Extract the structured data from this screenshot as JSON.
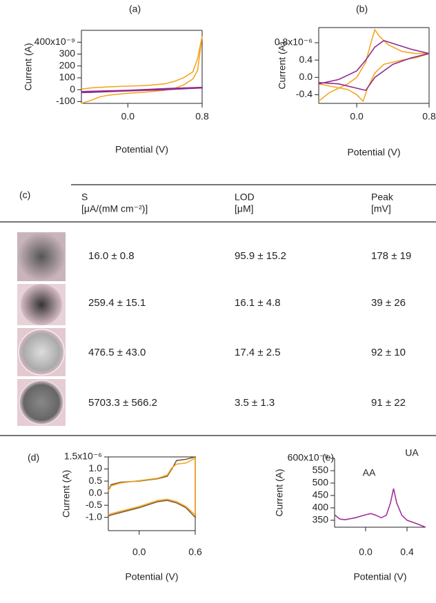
{
  "chart_data": [
    {
      "type": "line",
      "label": "(a)",
      "xlabel": "Potential (V)",
      "ylabel": "Current (A)",
      "xlim": [
        -0.5,
        0.8
      ],
      "ylim": [
        -1.15e-07,
        5e-07
      ],
      "xticks": [
        {
          "value": 0,
          "label": "0.0"
        },
        0.8
      ],
      "yticks": [
        {
          "value": 4e-07,
          "label": "400x10⁻⁹"
        },
        {
          "value": 3e-07,
          "label": "300"
        },
        {
          "value": 2e-07,
          "label": "200"
        },
        {
          "value": 1e-07,
          "label": "100"
        },
        0,
        {
          "value": -1e-07,
          "label": "-100"
        }
      ],
      "series": [
        {
          "color": "#f5a623",
          "x": [
            -0.5,
            -0.4,
            -0.3,
            -0.2,
            0,
            0.2,
            0.4,
            0.5,
            0.6,
            0.7,
            0.75,
            0.8,
            0.75,
            0.7,
            0.6,
            0.5,
            0.4,
            0.2,
            0,
            -0.2,
            -0.4,
            -0.5
          ],
          "values": [
            -1.15e-07,
            -9e-08,
            -6e-08,
            -4.5e-08,
            -3e-08,
            -2e-08,
            -5e-09,
            1e-08,
            4e-08,
            9e-08,
            1.6e-07,
            4.5e-07,
            2.6e-07,
            1.5e-07,
            1e-07,
            7e-08,
            5e-08,
            3.5e-08,
            3e-08,
            2.5e-08,
            1.5e-08,
            5e-09
          ]
        },
        {
          "color": "#8e2a8e",
          "x": [
            -0.5,
            0,
            0.4,
            0.8,
            0.8,
            0.4,
            0,
            -0.5
          ],
          "values": [
            -2.5e-08,
            -1e-08,
            0,
            1.5e-08,
            2e-08,
            1e-08,
            -5e-09,
            -1.5e-08
          ]
        }
      ]
    },
    {
      "type": "line",
      "label": "(b)",
      "xlabel": "Potential (V)",
      "ylabel": "Current (A)",
      "xlim": [
        -0.42,
        0.8
      ],
      "ylim": [
        -6e-07,
        1.15e-06
      ],
      "xticks": [
        {
          "value": 0,
          "label": "0.0"
        },
        0.8
      ],
      "yticks": [
        {
          "value": 8e-07,
          "label": "0.8x10⁻⁶"
        },
        {
          "value": 4e-07,
          "label": "0.4"
        },
        {
          "value": 0,
          "label": "0.0"
        },
        {
          "value": -4e-07,
          "label": "-0.4"
        }
      ],
      "series": [
        {
          "color": "#f5a623",
          "x": [
            -0.42,
            -0.3,
            -0.1,
            0,
            0.1,
            0.15,
            0.2,
            0.25,
            0.35,
            0.5,
            0.65,
            0.8,
            0.65,
            0.5,
            0.3,
            0.2,
            0.12,
            0.07,
            0,
            -0.1,
            -0.3,
            -0.42
          ],
          "values": [
            -5.5e-07,
            -3.5e-07,
            -1.5e-07,
            0,
            3.5e-07,
            7.5e-07,
            1.1e-06,
            9.5e-07,
            7.5e-07,
            6e-07,
            5.5e-07,
            5.5e-07,
            4.5e-07,
            4e-07,
            3e-07,
            1e-07,
            -2.5e-07,
            -5.5e-07,
            -4e-07,
            -2.8e-07,
            -2e-07,
            -1.5e-07
          ]
        },
        {
          "color": "#8e2a8e",
          "x": [
            -0.42,
            -0.2,
            0,
            0.1,
            0.2,
            0.3,
            0.45,
            0.6,
            0.8,
            0.6,
            0.4,
            0.2,
            0.1,
            0,
            -0.2,
            -0.42
          ],
          "values": [
            -1.5e-07,
            -5e-08,
            1.5e-07,
            4e-07,
            7e-07,
            8.5e-07,
            7.5e-07,
            6.5e-07,
            5.5e-07,
            4.5e-07,
            3e-07,
            0,
            -3e-07,
            -2.5e-07,
            -1.5e-07,
            -1.2e-07
          ]
        }
      ]
    },
    {
      "type": "line",
      "label": "(d)",
      "xlabel": "Potential (V)",
      "ylabel": "Current (A)",
      "xlim": [
        -0.33,
        0.6
      ],
      "ylim": [
        -1.55e-06,
        1.5e-06
      ],
      "xticks": [
        {
          "value": 0,
          "label": "0.0"
        },
        0.6
      ],
      "yticks": [
        {
          "value": 1.5e-06,
          "label": "1.5x10⁻⁶"
        },
        {
          "value": 1e-06,
          "label": "1.0"
        },
        {
          "value": 5e-07,
          "label": "0.5"
        },
        {
          "value": 0,
          "label": "0.0"
        },
        {
          "value": -5e-07,
          "label": "-0.5"
        },
        {
          "value": -1e-06,
          "label": "-1.0"
        }
      ],
      "series": [
        {
          "color": "#7a5a2e",
          "x": [
            -0.33,
            -0.3,
            -0.2,
            0,
            0.2,
            0.3,
            0.35,
            0.4,
            0.5,
            0.6,
            0.6,
            0.5,
            0.4,
            0.3,
            0.2,
            0,
            -0.2,
            -0.3,
            -0.33
          ],
          "values": [
            1e-07,
            3.5e-07,
            4.5e-07,
            5e-07,
            6e-07,
            7e-07,
            1e-06,
            1.35e-06,
            1.4e-06,
            1.5e-06,
            -1e-06,
            -6e-07,
            -4e-07,
            -3e-07,
            -3.5e-07,
            -6e-07,
            -8e-07,
            -9e-07,
            -9.5e-07
          ]
        },
        {
          "color": "#f5a623",
          "x": [
            -0.33,
            -0.3,
            -0.2,
            0,
            0.2,
            0.3,
            0.35,
            0.4,
            0.5,
            0.6,
            0.6,
            0.5,
            0.4,
            0.3,
            0.2,
            0,
            -0.2,
            -0.3,
            -0.33
          ],
          "values": [
            1e-07,
            3e-07,
            4.2e-07,
            5.2e-07,
            6.2e-07,
            7.5e-07,
            1.05e-06,
            1.2e-06,
            1.25e-06,
            1.45e-06,
            -9e-07,
            -5.5e-07,
            -3.5e-07,
            -2.5e-07,
            -3e-07,
            -5.5e-07,
            -7.5e-07,
            -8.5e-07,
            -9e-07
          ]
        }
      ]
    },
    {
      "type": "line",
      "label": "(e)",
      "xlabel": "Potential (V)",
      "ylabel": "Current (A)",
      "xlim": [
        -0.3,
        0.58
      ],
      "ylim": [
        3.22e-07,
        6e-07
      ],
      "xticks": [
        {
          "value": 0,
          "label": "0.0"
        },
        0.4
      ],
      "yticks": [
        {
          "value": 6e-07,
          "label": "600x10⁻⁹"
        },
        {
          "value": 5.5e-07,
          "label": "550"
        },
        {
          "value": 5e-07,
          "label": "500"
        },
        {
          "value": 4.5e-07,
          "label": "450"
        },
        {
          "value": 4e-07,
          "label": "400"
        },
        {
          "value": 3.5e-07,
          "label": "350"
        }
      ],
      "annotations": [
        "AA",
        "UA"
      ],
      "series": [
        {
          "color": "#a0309a",
          "x": [
            -0.3,
            -0.25,
            -0.2,
            -0.1,
            0,
            0.05,
            0.1,
            0.15,
            0.2,
            0.24,
            0.27,
            0.3,
            0.35,
            0.4,
            0.5,
            0.58
          ],
          "values": [
            3.72e-07,
            3.55e-07,
            3.52e-07,
            3.6e-07,
            3.72e-07,
            3.77e-07,
            3.7e-07,
            3.6e-07,
            3.7e-07,
            4.2e-07,
            4.78e-07,
            4.2e-07,
            3.7e-07,
            3.5e-07,
            3.35e-07,
            3.22e-07
          ]
        }
      ]
    }
  ],
  "table": {
    "label": "(c)",
    "columns": [
      {
        "title": "S",
        "unit": "[μA/(mM cm⁻²)]"
      },
      {
        "title": "LOD",
        "unit": "[μM]"
      },
      {
        "title": "Peak",
        "unit": "[mV]"
      }
    ],
    "rows": [
      [
        "16.0 ± 0.8",
        "95.9 ± 15.2",
        "178 ± 19"
      ],
      [
        "259.4 ± 15.1",
        "16.1 ± 4.8",
        "39 ± 26"
      ],
      [
        "476.5 ± 43.0",
        "17.4 ± 2.5",
        "92 ± 10"
      ],
      [
        "5703.3 ± 566.2",
        "3.5 ± 1.3",
        "91 ± 22"
      ]
    ]
  }
}
